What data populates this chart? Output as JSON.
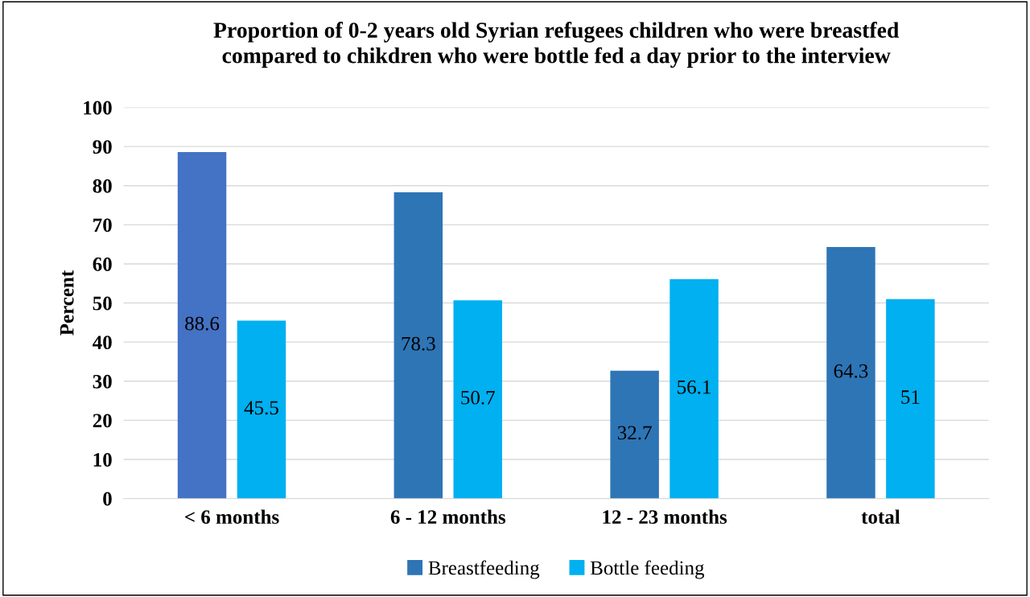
{
  "chart_data": {
    "type": "bar",
    "title": "Proportion of 0-2 years old Syrian refugees children who were breastfed\ncompared to chikdren who were bottle fed a day prior to the interview",
    "ylabel": "Percent",
    "categories": [
      "< 6 months",
      "6 - 12 months",
      "12 - 23 months",
      "total"
    ],
    "series": [
      {
        "name": "Breastfeeding",
        "color": "#2e75b6",
        "colors": [
          "#4472c4",
          "#2e75b6",
          "#2e75b6",
          "#2e75b6"
        ],
        "values": [
          88.6,
          78.3,
          32.7,
          64.3
        ]
      },
      {
        "name": "Bottle feeding",
        "color": "#00b0f0",
        "values": [
          45.5,
          50.7,
          56.1,
          51
        ]
      }
    ],
    "ylim": [
      0,
      100
    ],
    "yticks": [
      0,
      10,
      20,
      30,
      40,
      50,
      60,
      70,
      80,
      90,
      100
    ],
    "grid": "y",
    "legend": "bottom",
    "data_labels": true
  }
}
